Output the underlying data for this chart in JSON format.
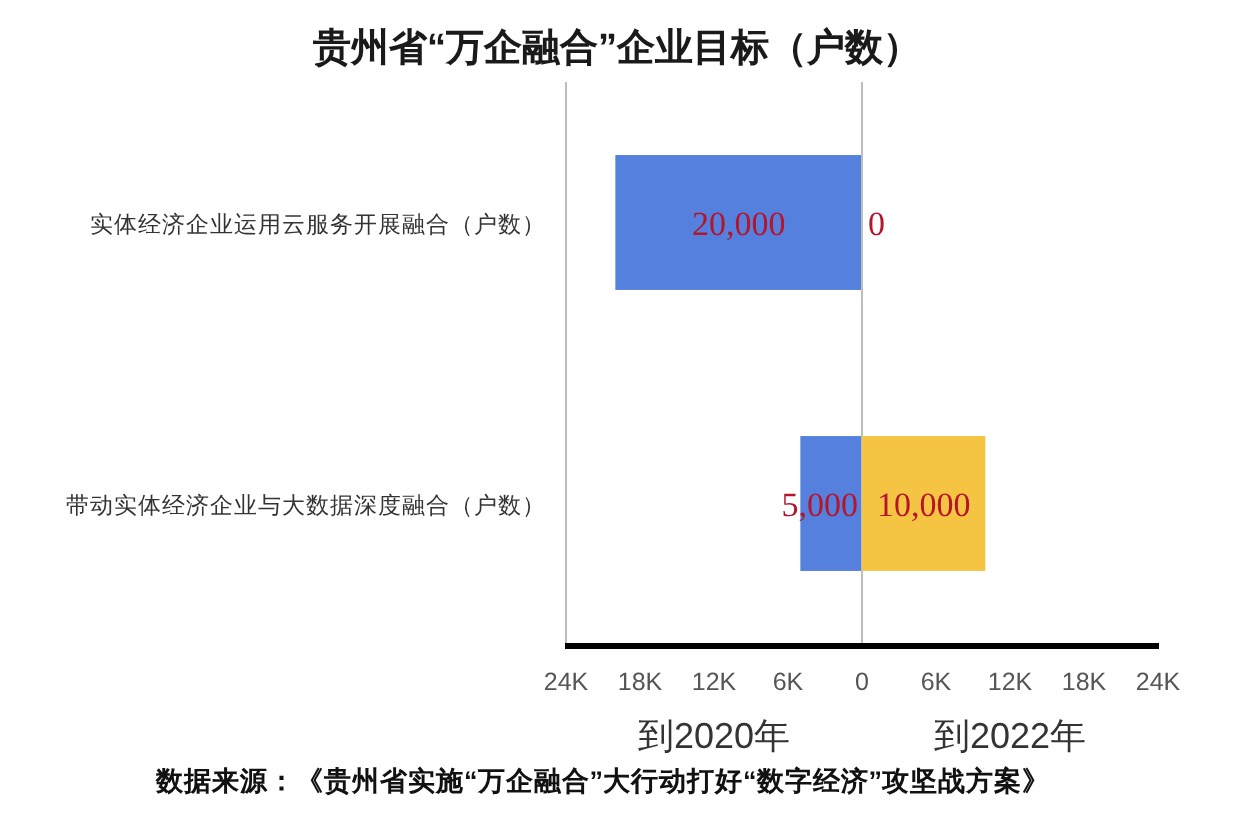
{
  "chart_data": [
    {
      "type": "bar",
      "orientation": "horizontal",
      "title": "贵州省“万企融合”企业目标（户数）",
      "categories": [
        "实体经济企业运用云服务开展融合（户数）",
        "带动实体经济企业与大数据深度融合（户数）"
      ],
      "values": [
        20000,
        5000
      ],
      "color": "#5580de",
      "value_labels": [
        "20,000",
        "5,000"
      ],
      "xlim": [
        24000,
        0
      ],
      "xticks": [
        {
          "value": 24000,
          "label": "24K"
        },
        {
          "value": 18000,
          "label": "18K"
        },
        {
          "value": 12000,
          "label": "12K"
        },
        {
          "value": 6000,
          "label": "6K"
        },
        0
      ],
      "xlabel": "到2020年",
      "annotations": [
        "数据来源：《贵州省实施“万企融合”大行动打好“数字经济”攻坚战方案》"
      ]
    },
    {
      "type": "bar",
      "orientation": "horizontal",
      "categories": [
        null,
        null
      ],
      "values": [
        0,
        10000
      ],
      "color": "#f5c443",
      "value_labels": [
        "0",
        "10,000"
      ],
      "xlim": [
        0,
        24000
      ],
      "xticks": [
        {
          "value": 6000,
          "label": "6K"
        },
        {
          "value": 12000,
          "label": "12K"
        },
        {
          "value": 18000,
          "label": "18K"
        },
        {
          "value": 24000,
          "label": "24K"
        }
      ],
      "xlabel": "到2022年",
      "tick_labels": "x"
    }
  ]
}
